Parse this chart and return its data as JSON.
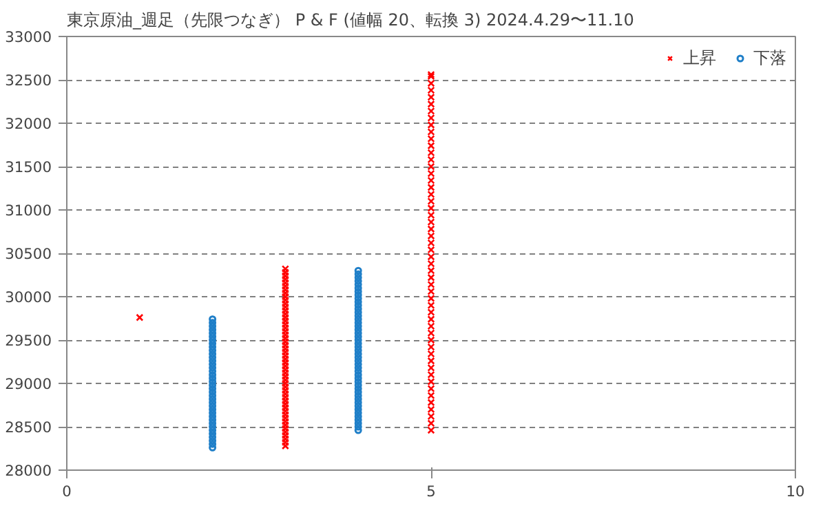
{
  "chart_data": {
    "type": "scatter",
    "title": "東京原油_週足（先限つなぎ）  P & F (値幅 20、転換 3)   2024.4.29〜11.10",
    "xlim": [
      0,
      10
    ],
    "xticks": [
      0,
      5,
      10
    ],
    "ylim": [
      28000,
      33000
    ],
    "yticks": [
      28000,
      28500,
      29000,
      29500,
      30000,
      30500,
      31000,
      31500,
      32000,
      32500,
      33000
    ],
    "grid": "y",
    "legend": "top right",
    "series": [
      {
        "name": "上昇",
        "color": "#ff0000",
        "marker": "cross",
        "x": [
          1,
          3,
          3,
          3,
          3,
          3,
          3,
          3,
          3,
          3,
          3,
          3,
          3,
          3,
          3,
          3,
          3,
          3,
          3,
          3,
          3,
          3,
          3,
          3,
          3,
          3,
          3,
          3,
          3,
          3,
          3,
          3,
          3,
          3,
          3,
          3,
          3,
          3,
          3,
          3,
          3,
          3,
          3,
          3,
          3,
          3,
          3,
          3,
          3,
          3,
          3,
          3,
          3,
          5,
          5,
          5,
          5,
          5,
          5,
          5,
          5,
          5,
          5,
          5,
          5,
          5,
          5,
          5,
          5,
          5,
          5,
          5,
          5,
          5,
          5,
          5,
          5,
          5,
          5,
          5,
          5,
          5,
          5,
          5,
          5,
          5,
          5,
          5,
          5,
          5,
          5,
          5,
          5,
          5,
          5,
          5,
          5,
          5,
          5,
          5,
          5,
          5,
          5,
          5,
          5,
          5
        ],
        "values": [
          29760,
          28280,
          28320,
          28360,
          28400,
          28440,
          28480,
          28520,
          28560,
          28600,
          28640,
          28680,
          28720,
          28760,
          28800,
          28840,
          28880,
          28920,
          28960,
          29000,
          29040,
          29080,
          29120,
          29160,
          29200,
          29240,
          29280,
          29320,
          29360,
          29400,
          29440,
          29480,
          29520,
          29560,
          29600,
          29640,
          29680,
          29720,
          29760,
          29800,
          29840,
          29880,
          29920,
          29960,
          30000,
          30040,
          30080,
          30120,
          30160,
          30200,
          30240,
          30280,
          30320,
          28460,
          28540,
          28620,
          28700,
          28780,
          28860,
          28940,
          29020,
          29100,
          29180,
          29260,
          29340,
          29420,
          29500,
          29580,
          29660,
          29740,
          29820,
          29900,
          29980,
          30060,
          30140,
          30220,
          30300,
          30380,
          30460,
          30540,
          30620,
          30700,
          30780,
          30860,
          30940,
          31020,
          31100,
          31180,
          31260,
          31340,
          31420,
          31500,
          31580,
          31660,
          31740,
          31820,
          31900,
          31980,
          32060,
          32140,
          32220,
          32300,
          32380,
          32460,
          32540,
          32560
        ]
      },
      {
        "name": "下落",
        "color": "#1f7fc8",
        "marker": "circle",
        "x": [
          2,
          2,
          2,
          2,
          2,
          2,
          2,
          2,
          2,
          2,
          2,
          2,
          2,
          2,
          2,
          2,
          2,
          2,
          2,
          2,
          2,
          2,
          2,
          2,
          2,
          2,
          2,
          2,
          2,
          2,
          2,
          2,
          2,
          2,
          2,
          2,
          2,
          2,
          4,
          4,
          4,
          4,
          4,
          4,
          4,
          4,
          4,
          4,
          4,
          4,
          4,
          4,
          4,
          4,
          4,
          4,
          4,
          4,
          4,
          4,
          4,
          4,
          4,
          4,
          4,
          4,
          4,
          4,
          4,
          4,
          4,
          4,
          4,
          4,
          4,
          4,
          4,
          4,
          4,
          4,
          4,
          4,
          4,
          4,
          4
        ],
        "values": [
          29740,
          29700,
          29660,
          29620,
          29580,
          29540,
          29500,
          29460,
          29420,
          29380,
          29340,
          29300,
          29260,
          29220,
          29180,
          29140,
          29100,
          29060,
          29020,
          28980,
          28940,
          28900,
          28860,
          28820,
          28780,
          28740,
          28700,
          28660,
          28620,
          28580,
          28540,
          28500,
          28460,
          28420,
          28380,
          28340,
          28300,
          28260,
          30300,
          30260,
          30220,
          30180,
          30140,
          30100,
          30060,
          30020,
          29980,
          29940,
          29900,
          29860,
          29820,
          29780,
          29740,
          29700,
          29660,
          29620,
          29580,
          29540,
          29500,
          29460,
          29420,
          29380,
          29340,
          29300,
          29260,
          29220,
          29180,
          29140,
          29100,
          29060,
          29020,
          28980,
          28940,
          28900,
          28860,
          28820,
          28780,
          28740,
          28700,
          28660,
          28620,
          28580,
          28540,
          28500,
          28460
        ]
      }
    ]
  }
}
